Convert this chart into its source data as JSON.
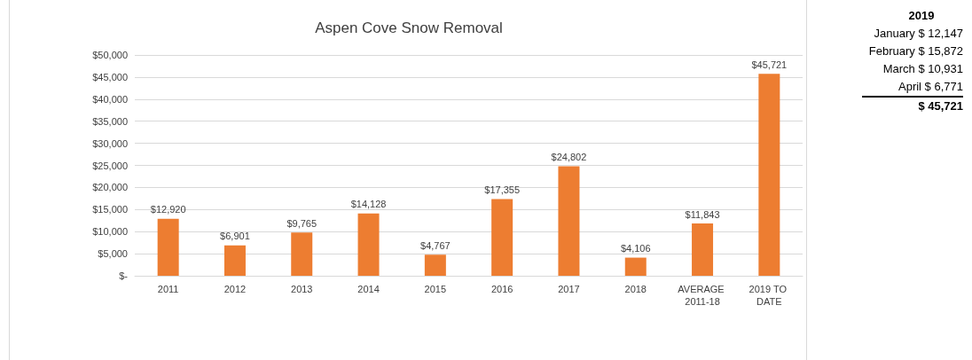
{
  "chart_data": {
    "type": "bar",
    "title": "Aspen Cove Snow Removal",
    "categories": [
      "2011",
      "2012",
      "2013",
      "2014",
      "2015",
      "2016",
      "2017",
      "2018",
      "AVERAGE 2011-18",
      "2019 TO DATE"
    ],
    "values": [
      12920,
      6901,
      9765,
      14128,
      4767,
      17355,
      24802,
      4106,
      11843,
      45721
    ],
    "value_labels": [
      "$12,920",
      "$6,901",
      "$9,765",
      "$14,128",
      "$4,767",
      "$17,355",
      "$24,802",
      "$4,106",
      "$11,843",
      "$45,721"
    ],
    "color": "#ed7d31",
    "ylim": [
      0,
      50000
    ],
    "yticks": [
      {
        "value": 0,
        "label": "$-"
      },
      {
        "value": 5000,
        "label": "$5,000"
      },
      {
        "value": 10000,
        "label": "$10,000"
      },
      {
        "value": 15000,
        "label": "$15,000"
      },
      {
        "value": 20000,
        "label": "$20,000"
      },
      {
        "value": 25000,
        "label": "$25,000"
      },
      {
        "value": 30000,
        "label": "$30,000"
      },
      {
        "value": 35000,
        "label": "$35,000"
      },
      {
        "value": 40000,
        "label": "$40,000"
      },
      {
        "value": 45000,
        "label": "$45,000"
      },
      {
        "value": 50000,
        "label": "$50,000"
      }
    ],
    "grid": "y",
    "annotations": [
      "2019",
      "January $ 12,147",
      "February $ 15,872",
      "March $ 10,931",
      "April $ 6,771",
      "$ 45,721"
    ]
  }
}
